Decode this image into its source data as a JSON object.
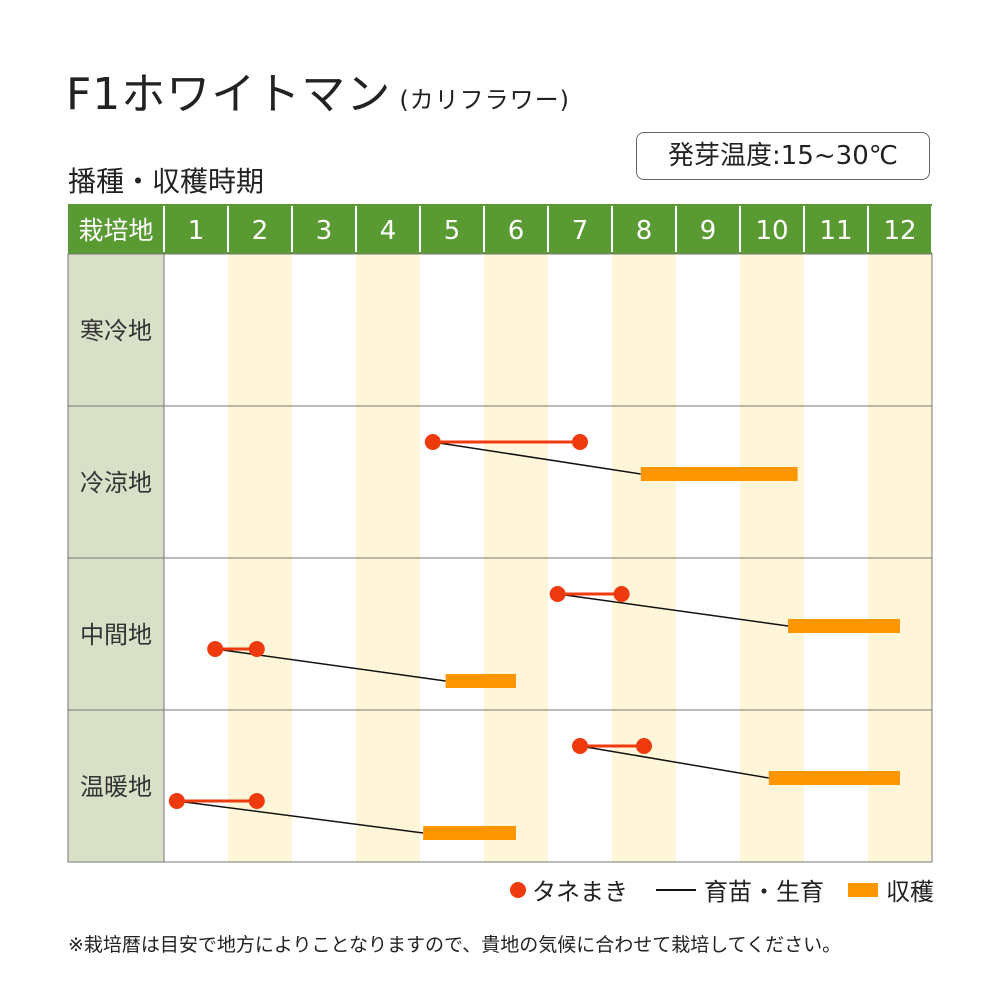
{
  "title": "F1ホワイトマン",
  "title_sub": "(カリフラワー)",
  "subtitle": "播種・収穫時期",
  "temperature": "発芽温度:15~30℃",
  "colors": {
    "header_green": "#5a9a33",
    "label_bg": "#d8e0c8",
    "stripe": "#fff6d9",
    "sowing": "#ee3a0c",
    "harvest": "#fb9600",
    "grid": "#777777"
  },
  "legend": {
    "sowing": "タネまき",
    "growing": "育苗・生育",
    "harvest": "収穫"
  },
  "note": "※栽培暦は目安で地方によりことなりますので、貴地の気候に合わせて栽培してください。",
  "chart_data": {
    "type": "gantt",
    "header_label": "栽培地",
    "months": [
      "1",
      "2",
      "3",
      "4",
      "5",
      "6",
      "7",
      "8",
      "9",
      "10",
      "11",
      "12"
    ],
    "regions": [
      {
        "name": "寒冷地",
        "schedules": []
      },
      {
        "name": "冷涼地",
        "schedules": [
          {
            "sow": [
              5.2,
              7.5
            ],
            "harvest": [
              8.45,
              10.9
            ]
          }
        ]
      },
      {
        "name": "中間地",
        "schedules": [
          {
            "sow": [
              7.15,
              8.15
            ],
            "harvest": [
              10.75,
              12.5
            ]
          },
          {
            "sow": [
              1.8,
              2.45
            ],
            "harvest": [
              5.4,
              6.5
            ]
          }
        ]
      },
      {
        "name": "温暖地",
        "schedules": [
          {
            "sow": [
              7.5,
              8.5
            ],
            "harvest": [
              10.45,
              12.5
            ]
          },
          {
            "sow": [
              1.2,
              2.45
            ],
            "harvest": [
              5.05,
              6.5
            ]
          }
        ]
      }
    ]
  }
}
